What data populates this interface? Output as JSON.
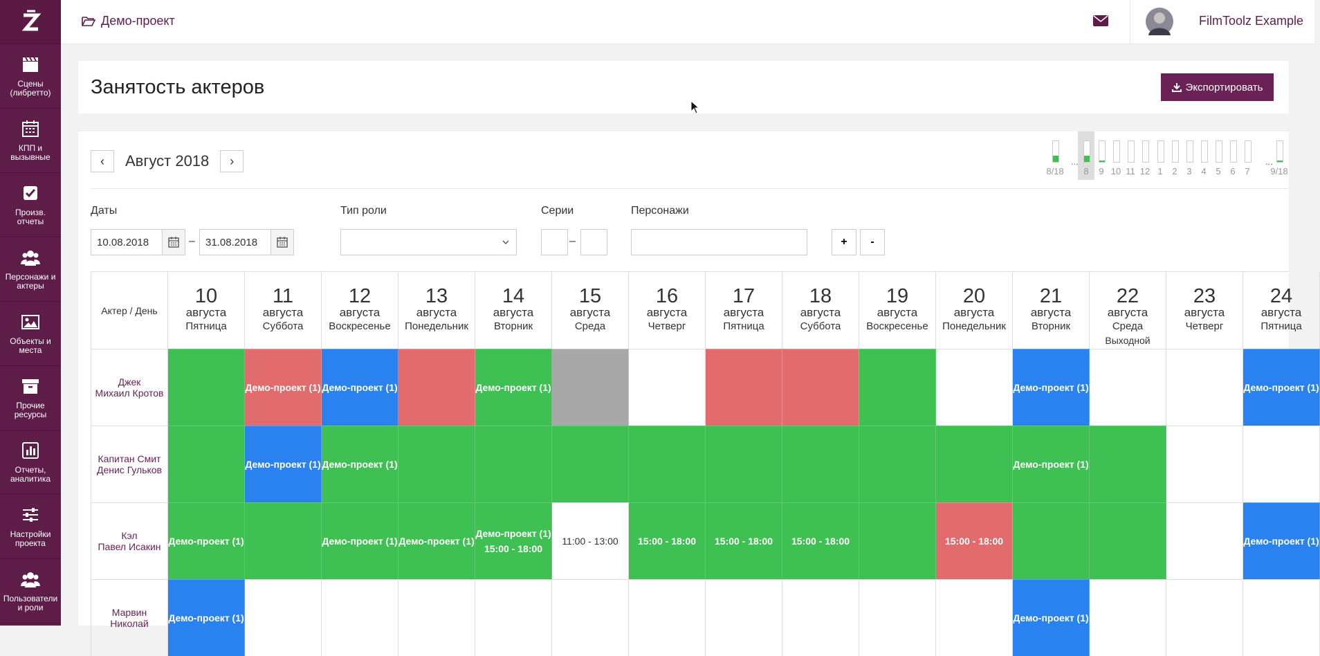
{
  "sidebar": {
    "items": [
      {
        "label": "Сцены (либретто)",
        "icon": "clapperboard-icon"
      },
      {
        "label": "КПП и вызывные",
        "icon": "calendar-icon"
      },
      {
        "label": "Произв. отчеты",
        "icon": "checkbox-icon"
      },
      {
        "label": "Персонажи и актеры",
        "icon": "users-icon"
      },
      {
        "label": "Объекты и места",
        "icon": "image-icon"
      },
      {
        "label": "Прочие ресурсы",
        "icon": "archive-icon"
      },
      {
        "label": "Отчеты, аналитика",
        "icon": "bar-chart-icon"
      },
      {
        "label": "Настройки проекта",
        "icon": "sliders-icon"
      },
      {
        "label": "Пользователи и роли",
        "icon": "users-icon"
      }
    ]
  },
  "topbar": {
    "project": "Демо-проект",
    "user": "FilmToolz Example"
  },
  "header": {
    "title": "Занятость актеров",
    "export_label": "Экспортировать"
  },
  "calendar": {
    "month": "Август 2018",
    "prev": "‹",
    "next": "›"
  },
  "episodes": {
    "dots": "...",
    "items": [
      {
        "label": "8/18",
        "fill": 0.3
      },
      {
        "label": "8",
        "fill": 0.3,
        "selected": true
      },
      {
        "label": "9",
        "fill": 0.06
      },
      {
        "label": "10",
        "fill": 0
      },
      {
        "label": "11",
        "fill": 0
      },
      {
        "label": "12",
        "fill": 0
      },
      {
        "label": "1",
        "fill": 0
      },
      {
        "label": "2",
        "fill": 0
      },
      {
        "label": "3",
        "fill": 0
      },
      {
        "label": "4",
        "fill": 0
      },
      {
        "label": "5",
        "fill": 0
      },
      {
        "label": "6",
        "fill": 0
      },
      {
        "label": "7",
        "fill": 0
      },
      {
        "label": "9/18",
        "fill": 0.06
      }
    ]
  },
  "filters": {
    "dates_label": "Даты",
    "date_from": "10.08.2018",
    "date_to": "31.08.2018",
    "dash": "–",
    "role_type_label": "Тип роли",
    "series_label": "Серии",
    "characters_label": "Персонажи",
    "plus": "+",
    "minus": "-"
  },
  "grid": {
    "corner": "Актер / День",
    "days": [
      {
        "num": "10",
        "month": "августа",
        "weekday": "Пятница",
        "note": ""
      },
      {
        "num": "11",
        "month": "августа",
        "weekday": "Суббота",
        "note": ""
      },
      {
        "num": "12",
        "month": "августа",
        "weekday": "Воскресенье",
        "note": ""
      },
      {
        "num": "13",
        "month": "августа",
        "weekday": "Понедельник",
        "note": ""
      },
      {
        "num": "14",
        "month": "августа",
        "weekday": "Вторник",
        "note": ""
      },
      {
        "num": "15",
        "month": "августа",
        "weekday": "Среда",
        "note": ""
      },
      {
        "num": "16",
        "month": "августа",
        "weekday": "Четверг",
        "note": ""
      },
      {
        "num": "17",
        "month": "августа",
        "weekday": "Пятница",
        "note": ""
      },
      {
        "num": "18",
        "month": "августа",
        "weekday": "Суббота",
        "note": ""
      },
      {
        "num": "19",
        "month": "августа",
        "weekday": "Воскресенье",
        "note": ""
      },
      {
        "num": "20",
        "month": "августа",
        "weekday": "Понедельник",
        "note": ""
      },
      {
        "num": "21",
        "month": "августа",
        "weekday": "Вторник",
        "note": ""
      },
      {
        "num": "22",
        "month": "августа",
        "weekday": "Среда",
        "note": "Выходной"
      },
      {
        "num": "23",
        "month": "августа",
        "weekday": "Четверг",
        "note": ""
      },
      {
        "num": "24",
        "month": "августа",
        "weekday": "Пятница",
        "note": ""
      }
    ],
    "rows": [
      {
        "character": "Джек",
        "actor": "Михаил Кротов",
        "cells": [
          {
            "c": "green",
            "t": ""
          },
          {
            "c": "red",
            "t": "Демо-проект (1)"
          },
          {
            "c": "blue",
            "t": "Демо-проект (1)"
          },
          {
            "c": "red",
            "t": ""
          },
          {
            "c": "green",
            "t": "Демо-проект (1)"
          },
          {
            "c": "gray",
            "t": ""
          },
          {
            "c": "white",
            "t": ""
          },
          {
            "c": "red",
            "t": ""
          },
          {
            "c": "red",
            "t": ""
          },
          {
            "c": "green",
            "t": ""
          },
          {
            "c": "white",
            "t": ""
          },
          {
            "c": "blue",
            "t": "Демо-проект (1)"
          },
          {
            "c": "white",
            "t": ""
          },
          {
            "c": "white",
            "t": ""
          },
          {
            "c": "blue",
            "t": "Демо-проект (1)"
          }
        ]
      },
      {
        "character": "Капитан Смит",
        "actor": "Денис Гульков",
        "cells": [
          {
            "c": "green",
            "t": ""
          },
          {
            "c": "blue",
            "t": "Демо-проект (1)"
          },
          {
            "c": "green",
            "t": "Демо-проект (1)"
          },
          {
            "c": "green",
            "t": ""
          },
          {
            "c": "green",
            "t": ""
          },
          {
            "c": "green",
            "t": ""
          },
          {
            "c": "green",
            "t": ""
          },
          {
            "c": "green",
            "t": ""
          },
          {
            "c": "green",
            "t": ""
          },
          {
            "c": "green",
            "t": ""
          },
          {
            "c": "green",
            "t": ""
          },
          {
            "c": "green",
            "t": "Демо-проект (1)"
          },
          {
            "c": "green",
            "t": ""
          },
          {
            "c": "white",
            "t": ""
          },
          {
            "c": "white",
            "t": ""
          }
        ]
      },
      {
        "character": "Кэл",
        "actor": "Павел Исакин",
        "cells": [
          {
            "c": "green",
            "t": "Демо-проект (1)"
          },
          {
            "c": "green",
            "t": ""
          },
          {
            "c": "green",
            "t": "Демо-проект (1)"
          },
          {
            "c": "green",
            "t": "Демо-проект (1)"
          },
          {
            "c": "green",
            "t": "Демо-проект (1)",
            "t2": "15:00 - 18:00"
          },
          {
            "c": "white",
            "t": "11:00 - 13:00"
          },
          {
            "c": "green",
            "t": "15:00 - 18:00"
          },
          {
            "c": "green",
            "t": "15:00 - 18:00"
          },
          {
            "c": "green",
            "t": "15:00 - 18:00"
          },
          {
            "c": "green",
            "t": ""
          },
          {
            "c": "red",
            "t": "15:00 - 18:00"
          },
          {
            "c": "green",
            "t": ""
          },
          {
            "c": "green",
            "t": ""
          },
          {
            "c": "white",
            "t": ""
          },
          {
            "c": "blue",
            "t": "Демо-проект (1)"
          }
        ]
      },
      {
        "character": "Марвин",
        "actor": "Николай",
        "cells": [
          {
            "c": "blue",
            "t": "Демо-проект (1)"
          },
          {
            "c": "white",
            "t": ""
          },
          {
            "c": "white",
            "t": ""
          },
          {
            "c": "white",
            "t": ""
          },
          {
            "c": "white",
            "t": ""
          },
          {
            "c": "white",
            "t": ""
          },
          {
            "c": "white",
            "t": ""
          },
          {
            "c": "white",
            "t": ""
          },
          {
            "c": "white",
            "t": ""
          },
          {
            "c": "white",
            "t": ""
          },
          {
            "c": "white",
            "t": ""
          },
          {
            "c": "blue",
            "t": "Демо-проект (1)"
          },
          {
            "c": "white",
            "t": ""
          },
          {
            "c": "white",
            "t": ""
          },
          {
            "c": "white",
            "t": ""
          }
        ]
      }
    ]
  },
  "colors": {
    "brand": "#5e1d48",
    "green": "#3ec052",
    "red": "#e26c6d",
    "blue": "#2a82f0",
    "gray": "#a8a8a8"
  }
}
